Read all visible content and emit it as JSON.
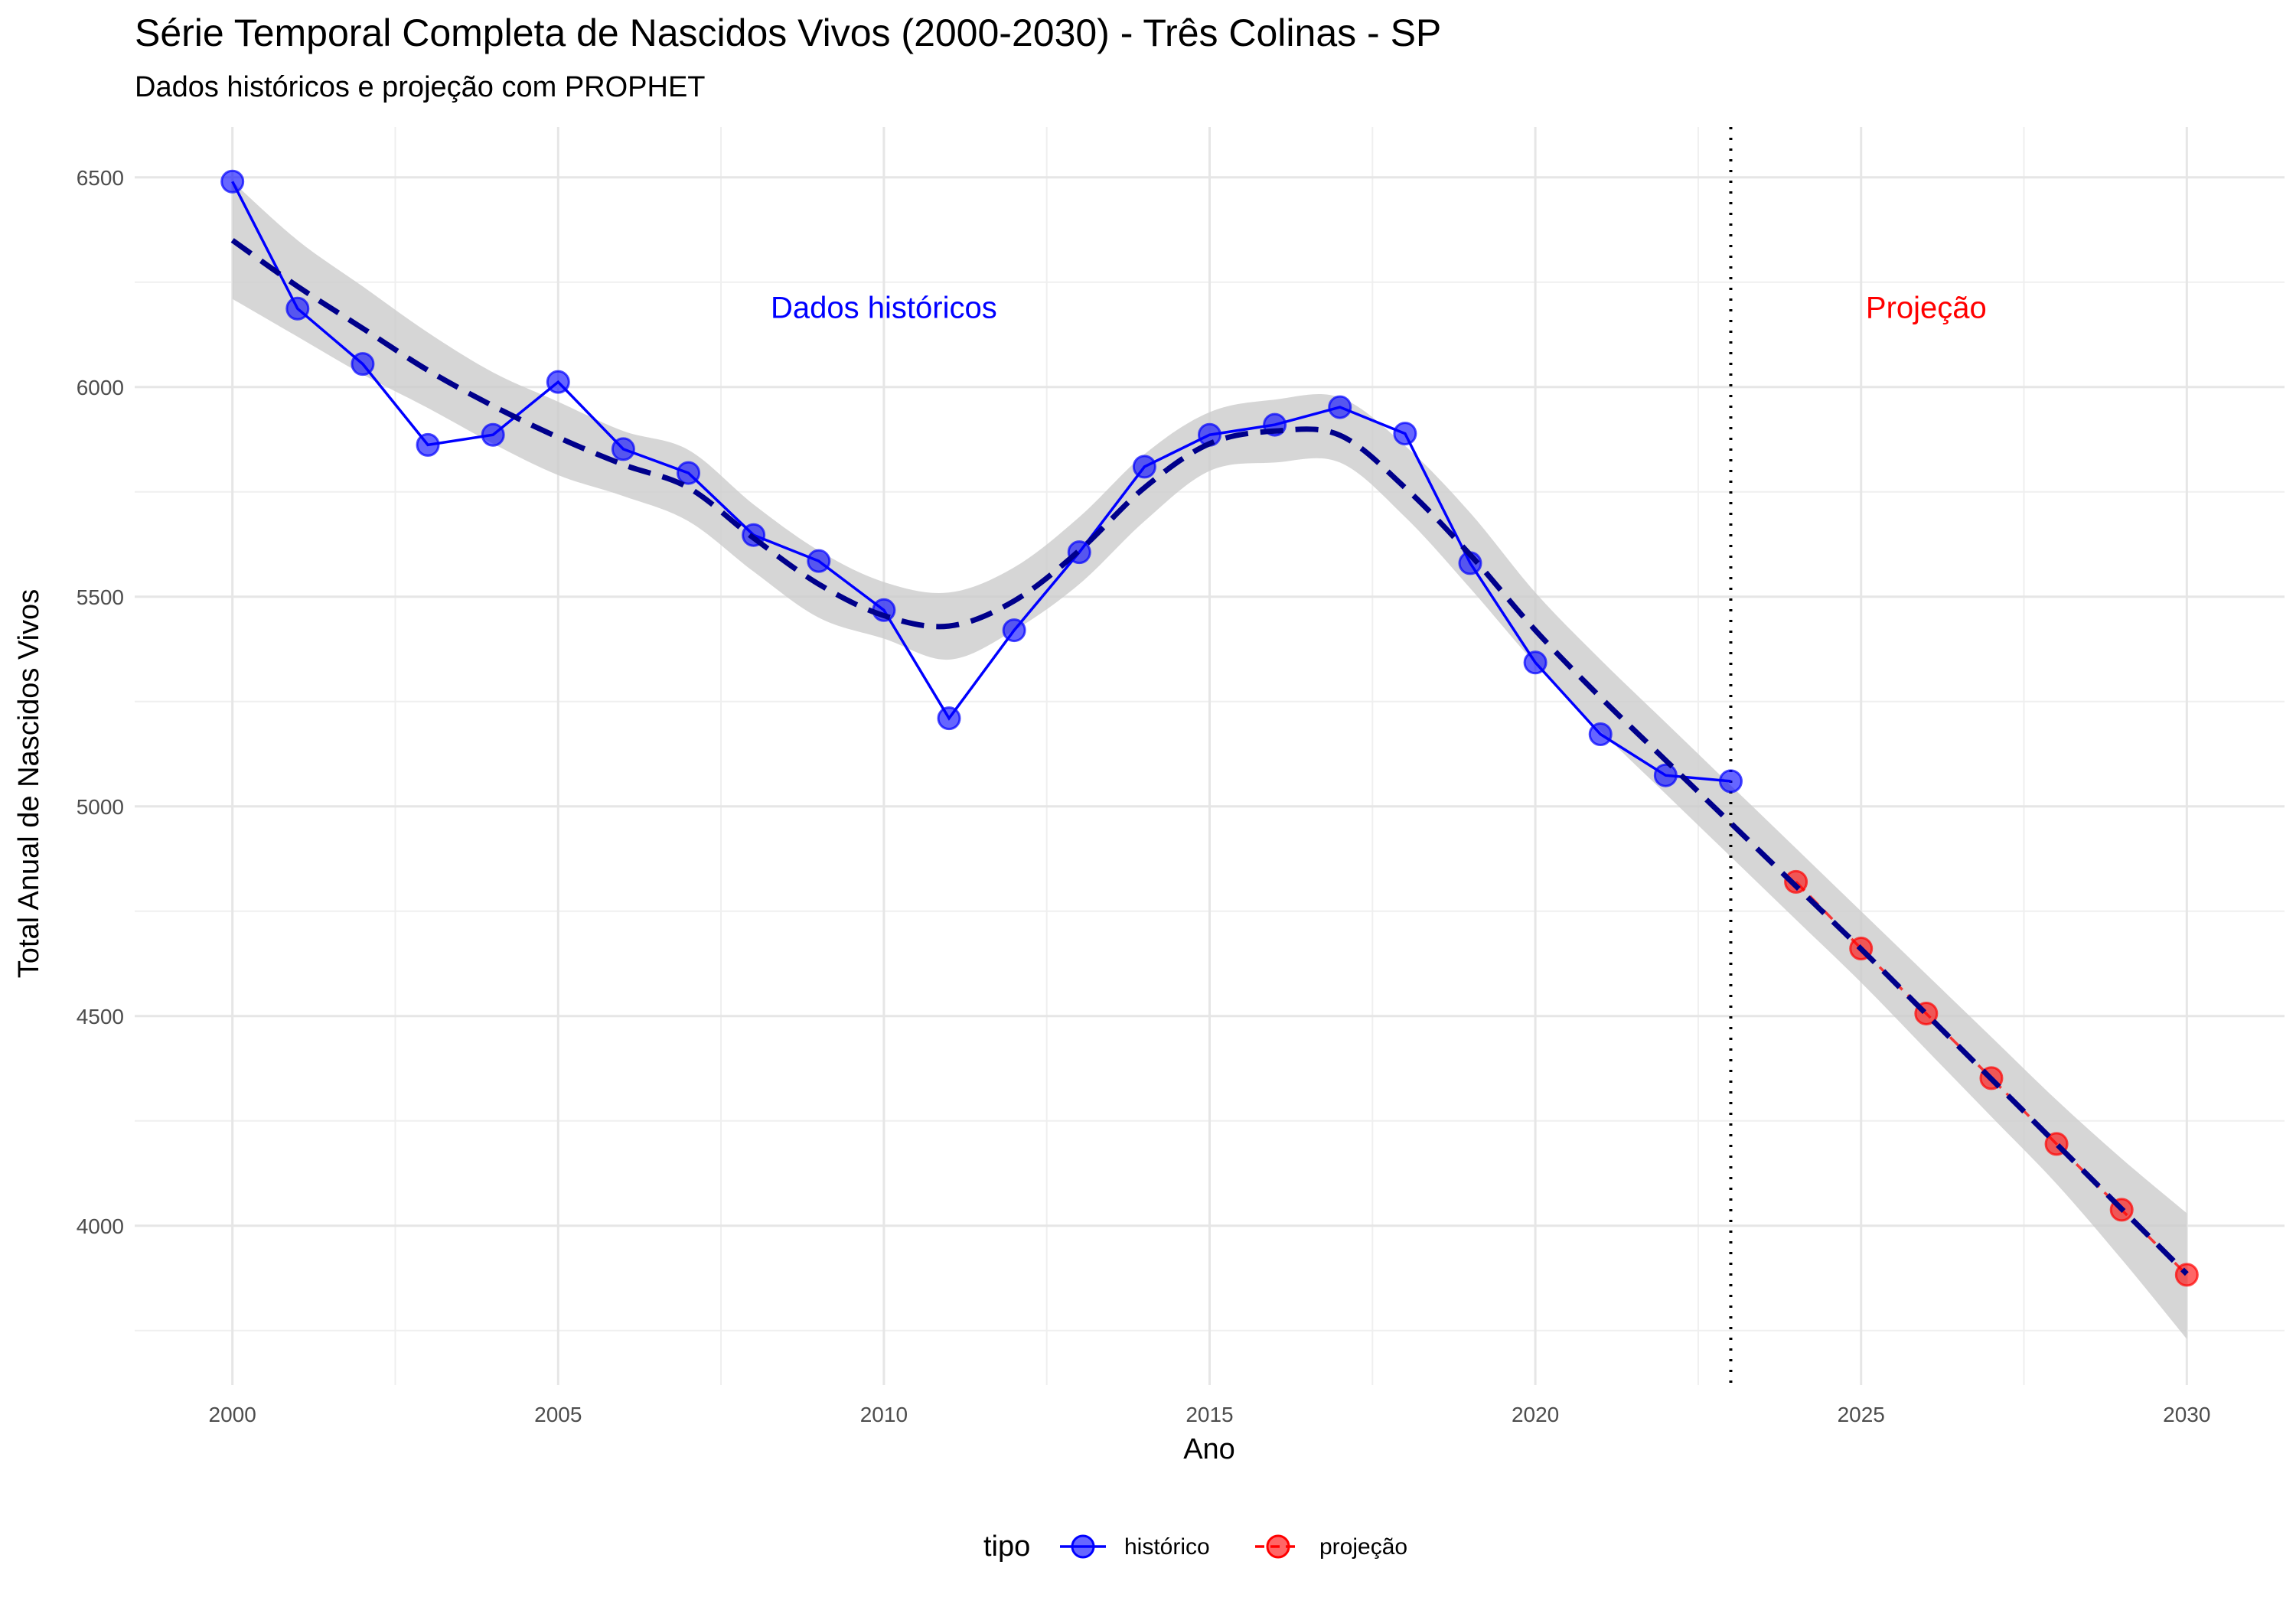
{
  "chart_data": {
    "type": "line",
    "title": "Série Temporal Completa de Nascidos Vivos (2000-2030) -  Três Colinas - SP",
    "subtitle": "Dados históricos e projeção com PROPHET",
    "xlabel": "Ano",
    "ylabel": "Total Anual de Nascidos Vivos",
    "xlim": [
      1998.5,
      2031.5
    ],
    "ylim": [
      3620,
      6620
    ],
    "x_ticks": [
      2000,
      2005,
      2010,
      2015,
      2020,
      2025,
      2030
    ],
    "y_ticks": [
      4000,
      4500,
      5000,
      5500,
      6000,
      6500
    ],
    "x_tick_labels": [
      "2000",
      "2005",
      "2010",
      "2015",
      "2020",
      "2025",
      "2030"
    ],
    "y_tick_labels": [
      "4000",
      "4500",
      "5000",
      "5500",
      "6000",
      "6500"
    ],
    "grid": true,
    "series": [
      {
        "name": "histórico",
        "color": "#0000ff",
        "x": [
          2000,
          2001,
          2002,
          2003,
          2004,
          2005,
          2006,
          2007,
          2008,
          2009,
          2010,
          2011,
          2012,
          2013,
          2014,
          2015,
          2016,
          2017,
          2018,
          2019,
          2020,
          2021,
          2022,
          2023
        ],
        "y": [
          6490,
          6187,
          6055,
          5862,
          5886,
          6012,
          5852,
          5795,
          5647,
          5585,
          5468,
          5210,
          5420,
          5606,
          5810,
          5886,
          5910,
          5952,
          5889,
          5580,
          5343,
          5172,
          5074,
          5060
        ]
      },
      {
        "name": "projeção",
        "color": "#ff0000",
        "x": [
          2024,
          2025,
          2026,
          2027,
          2028,
          2029,
          2030
        ],
        "y": [
          4820,
          4661,
          4506,
          4352,
          4195,
          4038,
          3883
        ]
      }
    ],
    "trend": {
      "color": "#00008b",
      "style": "dashed",
      "x": [
        2000,
        2001,
        2002,
        2003,
        2004,
        2005,
        2006,
        2007,
        2008,
        2009,
        2010,
        2011,
        2012,
        2013,
        2014,
        2015,
        2016,
        2017,
        2018,
        2019,
        2020,
        2021,
        2022,
        2023,
        2024,
        2025,
        2026,
        2027,
        2028,
        2029,
        2030
      ],
      "y": [
        6350,
        6240,
        6140,
        6040,
        5955,
        5880,
        5815,
        5760,
        5640,
        5530,
        5455,
        5430,
        5490,
        5610,
        5760,
        5865,
        5895,
        5885,
        5760,
        5600,
        5420,
        5260,
        5110,
        4960,
        4810,
        4660,
        4505,
        4350,
        4195,
        4040,
        3885
      ],
      "lower": [
        6210,
        6120,
        6030,
        5950,
        5865,
        5790,
        5740,
        5680,
        5560,
        5450,
        5400,
        5350,
        5420,
        5530,
        5680,
        5800,
        5820,
        5820,
        5690,
        5520,
        5340,
        5180,
        5030,
        4880,
        4730,
        4580,
        4420,
        4260,
        4100,
        3920,
        3730
      ],
      "upper": [
        6490,
        6350,
        6240,
        6130,
        6035,
        5965,
        5895,
        5850,
        5720,
        5610,
        5535,
        5510,
        5570,
        5690,
        5840,
        5940,
        5970,
        5975,
        5860,
        5700,
        5510,
        5350,
        5200,
        5050,
        4900,
        4750,
        4600,
        4450,
        4300,
        4160,
        4030
      ]
    },
    "vline": {
      "x": 2023,
      "style": "dotted",
      "color": "#000000"
    },
    "annotations": [
      {
        "text": "Dados históricos",
        "x": 2010,
        "y": 6165,
        "color": "#0000ff"
      },
      {
        "text": "Projeção",
        "x": 2026,
        "y": 6165,
        "color": "#ff0000"
      }
    ],
    "legend": {
      "title": "tipo",
      "position": "bottom",
      "items": [
        {
          "label": "histórico",
          "color": "#0000ff"
        },
        {
          "label": "projeção",
          "color": "#ff0000"
        }
      ]
    }
  }
}
